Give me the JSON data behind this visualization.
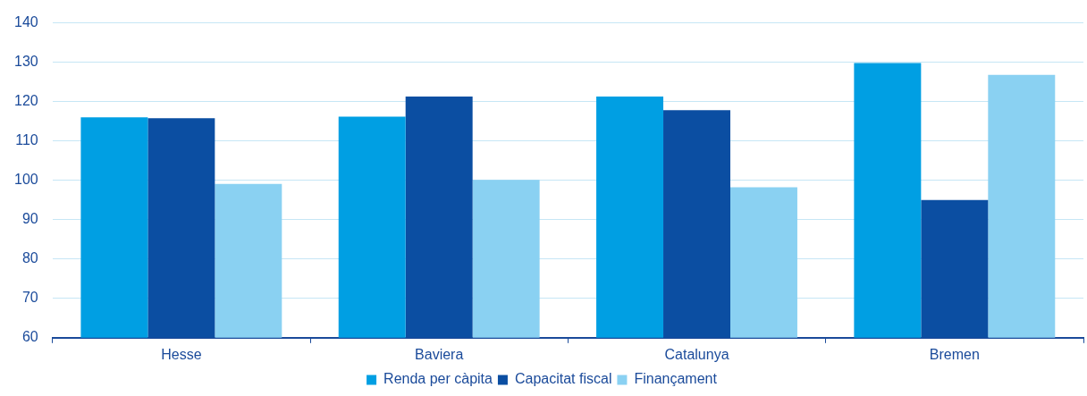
{
  "chart_data": {
    "type": "bar",
    "categories": [
      "Hesse",
      "Baviera",
      "Catalunya",
      "Bremen"
    ],
    "series": [
      {
        "name": "Renda per càpita",
        "color": "#009fe3",
        "values": [
          116,
          116.2,
          121.3,
          129.8
        ]
      },
      {
        "name": "Capacitat fiscal",
        "color": "#0b4ea2",
        "values": [
          115.8,
          121.3,
          117.8,
          95
        ]
      },
      {
        "name": "Finançament",
        "color": "#8ad1f2",
        "values": [
          99.1,
          100.1,
          98.2,
          126.8
        ]
      }
    ],
    "ylim": [
      60,
      140
    ],
    "yticks": [
      60,
      70,
      80,
      90,
      100,
      110,
      120,
      130,
      140
    ],
    "grid": "y",
    "legend": "bottom"
  }
}
